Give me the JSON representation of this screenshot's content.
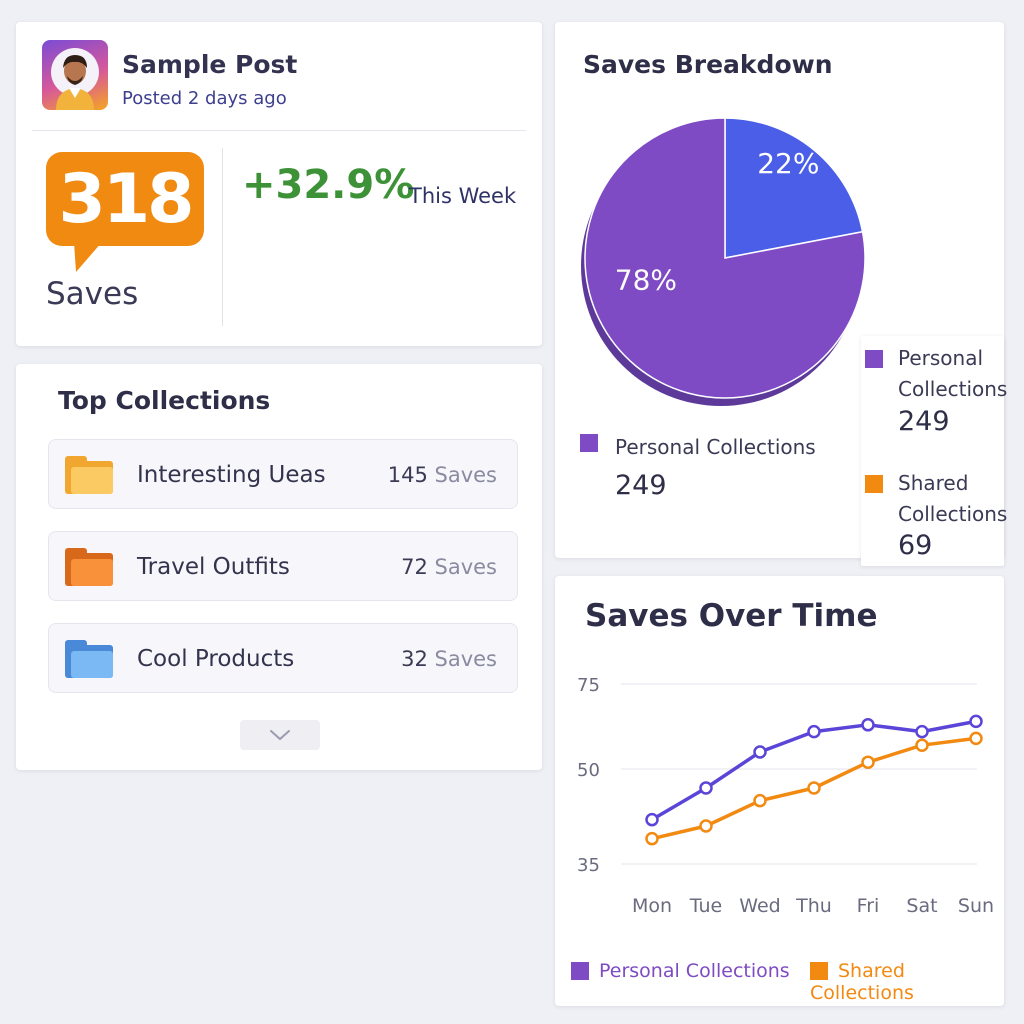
{
  "post": {
    "title": "Sample Post",
    "posted": "Posted 2 days ago",
    "saves_count": "318",
    "saves_label": "Saves",
    "growth": "+32.9%",
    "growth_period": "This Week"
  },
  "collections": {
    "title": "Top Collections",
    "items": [
      {
        "name": "Interesting Ueas",
        "count": "145",
        "unit": "Saves",
        "color": "#f9b845"
      },
      {
        "name": "Travel Outfits",
        "count": "72",
        "unit": "Saves",
        "color": "#f5882a"
      },
      {
        "name": "Cool Products",
        "count": "32",
        "unit": "Saves",
        "color": "#5aa0e8"
      }
    ]
  },
  "breakdown": {
    "title": "Saves Breakdown",
    "pie_labels": [
      "78%",
      "22%"
    ],
    "legend_left": {
      "label": "Personal Collections",
      "value": "249",
      "color": "#7e4bc4"
    },
    "legend_right": [
      {
        "label_line1": "Personal",
        "label_line2": "Collections",
        "value": "249",
        "color": "#7e4bc4"
      },
      {
        "label_line1": "Shared",
        "label_line2": "Collections",
        "value": "69",
        "color": "#f28a12"
      }
    ]
  },
  "time_chart": {
    "title": "Saves Over Time"
  },
  "chart_data": [
    {
      "type": "pie",
      "categories": [
        "Personal Collections",
        "Shared Collections"
      ],
      "values": [
        78,
        22
      ],
      "colors": [
        "#7e4bc4",
        "#4a5ee8"
      ]
    },
    {
      "type": "line",
      "categories": [
        "Mon",
        "Tue",
        "Wed",
        "Thu",
        "Fri",
        "Sat",
        "Sun"
      ],
      "series": [
        {
          "name": "Personal Collections",
          "color": "#5b45d8",
          "values": [
            42,
            47,
            55,
            61,
            63,
            61,
            64
          ]
        },
        {
          "name": "Shared Collections",
          "color": "#f28a12",
          "values": [
            39,
            41,
            45,
            47,
            52,
            57,
            59
          ]
        }
      ],
      "yticks": [
        "75",
        "50",
        "35"
      ],
      "grid": true,
      "legend": "bottom"
    }
  ]
}
